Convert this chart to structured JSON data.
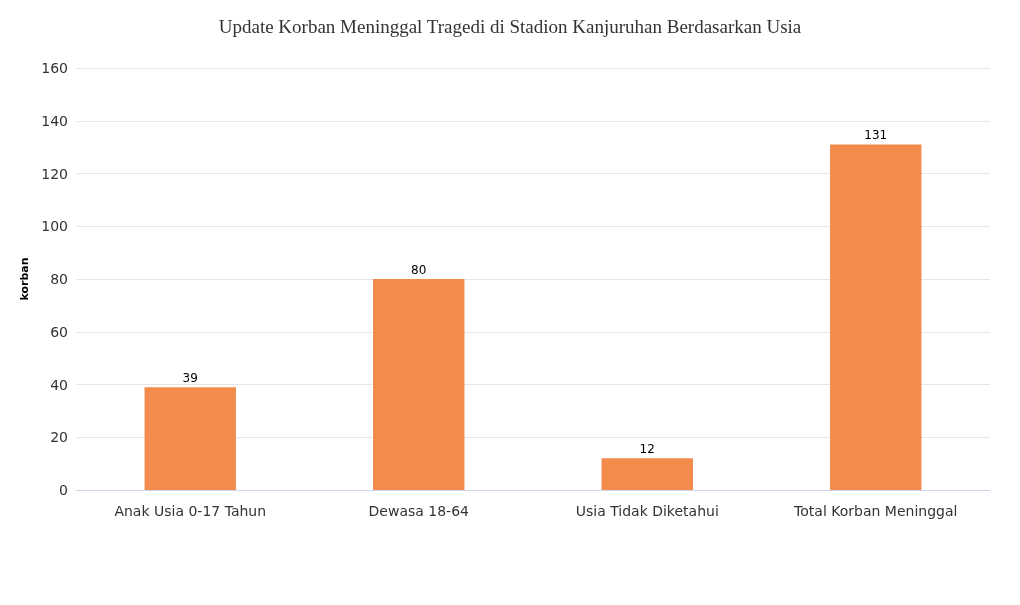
{
  "chart_data": {
    "type": "bar",
    "title": "Update Korban Meninggal Tragedi di Stadion Kanjuruhan Berdasarkan Usia",
    "ylabel": "korban",
    "categories": [
      "Anak Usia 0-17 Tahun",
      "Dewasa 18-64",
      "Usia Tidak Diketahui",
      "Total Korban Meninggal"
    ],
    "values": [
      39,
      80,
      12,
      131
    ],
    "color": "#f28b4c",
    "ylim": [
      0,
      160
    ],
    "yticks": [
      0,
      20,
      40,
      60,
      80,
      100,
      120,
      140,
      160
    ],
    "grid": "y",
    "data_labels": true
  }
}
